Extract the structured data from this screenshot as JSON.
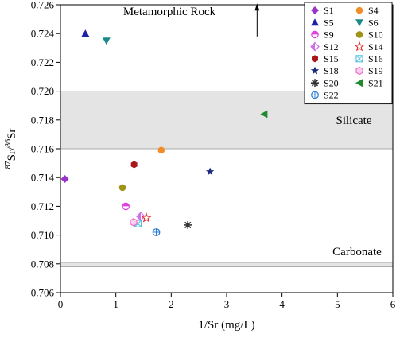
{
  "chart_data": {
    "type": "scatter",
    "xlabel": "1/Sr (mg/L)",
    "ylabel_parts": {
      "pre": "87",
      "a": "Sr/",
      "sup2": "86",
      "b": "Sr"
    },
    "xlim": [
      0,
      6
    ],
    "ylim": [
      0.706,
      0.726
    ],
    "x_ticks": [
      0,
      1,
      2,
      3,
      4,
      5,
      6
    ],
    "y_ticks": [
      0.706,
      0.708,
      0.71,
      0.712,
      0.714,
      0.716,
      0.718,
      0.72,
      0.722,
      0.724,
      0.726
    ],
    "y_tick_labels": [
      "0.706",
      "0.708",
      "0.710",
      "0.712",
      "0.714",
      "0.716",
      "0.718",
      "0.720",
      "0.722",
      "0.724",
      "0.726"
    ],
    "grid": false,
    "legend_position": "top-right",
    "bands": [
      {
        "label": "Silicate",
        "y_range": [
          0.716,
          0.72
        ],
        "color": "#e4e4e4"
      },
      {
        "label": "Carbonate",
        "y_range": [
          0.7078,
          0.7081
        ],
        "color": "#e4e4e4"
      }
    ],
    "annotations": [
      {
        "text": "Metamorphic Rock",
        "arrow": {
          "x": 3.55,
          "y_from": 0.7238,
          "y_to": 0.7261
        }
      }
    ],
    "series": [
      {
        "name": "S1",
        "marker": "diamond",
        "color": "#9932cc",
        "points": [
          [
            0.08,
            0.7139
          ]
        ]
      },
      {
        "name": "S4",
        "marker": "circle",
        "color": "#f28c28",
        "points": [
          [
            1.82,
            0.7159
          ]
        ]
      },
      {
        "name": "S5",
        "marker": "triangle",
        "color": "#1f1fa8",
        "points": [
          [
            0.45,
            0.724
          ]
        ]
      },
      {
        "name": "S6",
        "marker": "triangle-down",
        "color": "#1a8a8a",
        "points": [
          [
            0.83,
            0.7235
          ]
        ]
      },
      {
        "name": "S9",
        "marker": "half-circle",
        "color": "#e040e0",
        "points": [
          [
            1.18,
            0.712
          ]
        ]
      },
      {
        "name": "S10",
        "marker": "circle",
        "color": "#a09418",
        "points": [
          [
            1.12,
            0.7133
          ]
        ]
      },
      {
        "name": "S12",
        "marker": "half-diamond",
        "color": "#d070e8",
        "points": [
          [
            1.45,
            0.7113
          ]
        ]
      },
      {
        "name": "S14",
        "marker": "star-open",
        "color": "#e03030",
        "points": [
          [
            1.55,
            0.7112
          ]
        ]
      },
      {
        "name": "S15",
        "marker": "hexagon",
        "color": "#a81818",
        "points": [
          [
            1.33,
            0.7149
          ]
        ]
      },
      {
        "name": "S16",
        "marker": "square-x",
        "color": "#50c0e0",
        "points": [
          [
            1.4,
            0.7108
          ]
        ]
      },
      {
        "name": "S18",
        "marker": "star",
        "color": "#1a2a80",
        "points": [
          [
            2.7,
            0.7144
          ]
        ]
      },
      {
        "name": "S19",
        "marker": "hexagon-open",
        "color": "#f070c8",
        "points": [
          [
            1.32,
            0.7109
          ]
        ]
      },
      {
        "name": "S20",
        "marker": "asterisk",
        "color": "#333333",
        "points": [
          [
            2.3,
            0.7107
          ]
        ]
      },
      {
        "name": "S21",
        "marker": "triangle-left",
        "color": "#1e8a2e",
        "points": [
          [
            3.68,
            0.7184
          ]
        ]
      },
      {
        "name": "S22",
        "marker": "circle-cross",
        "color": "#2878d8",
        "points": [
          [
            1.73,
            0.7102
          ]
        ]
      }
    ]
  }
}
